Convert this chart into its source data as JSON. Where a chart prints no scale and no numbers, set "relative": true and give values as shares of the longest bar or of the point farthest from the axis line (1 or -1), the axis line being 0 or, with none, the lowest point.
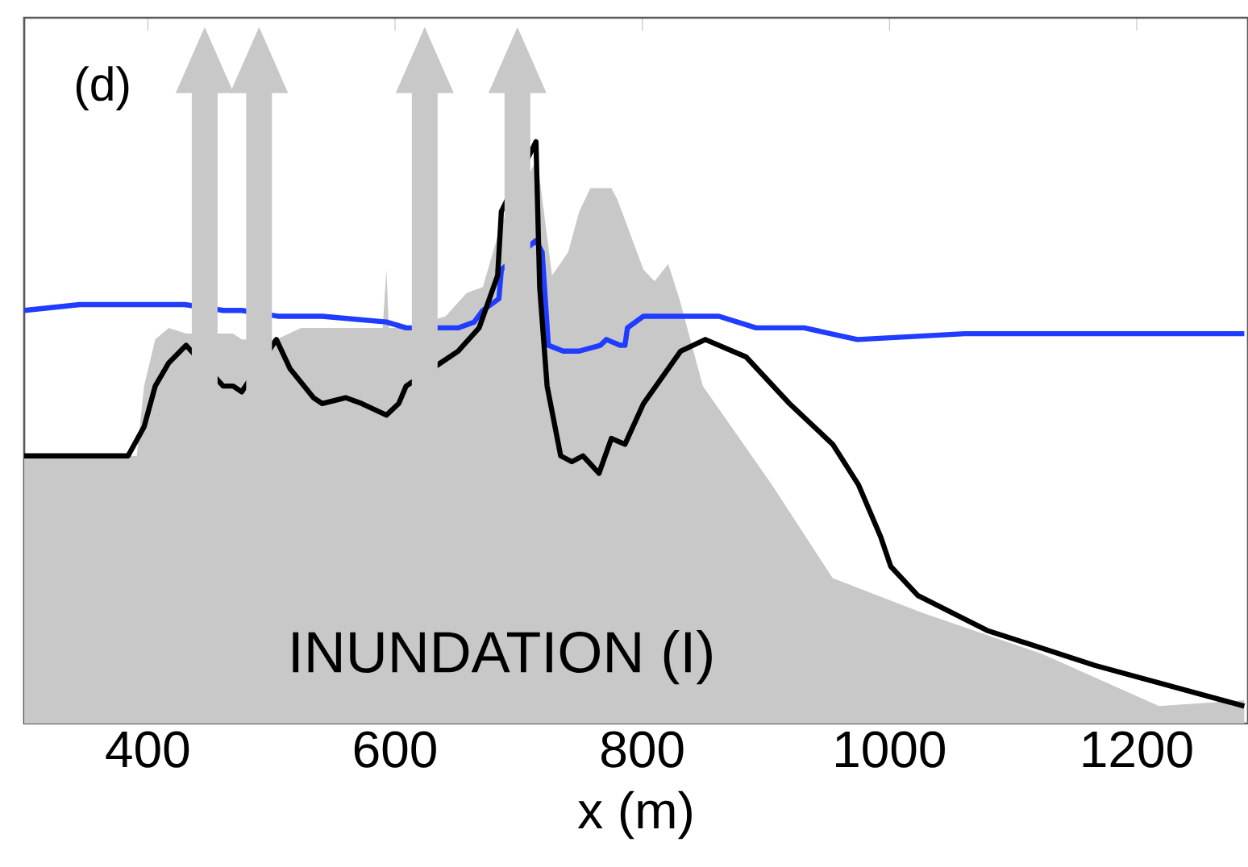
{
  "chart_data": {
    "type": "line",
    "relative": true,
    "xlabel": "x (m)",
    "annotations": [
      "(d)",
      "INUNDATION (I)"
    ],
    "xlim": [
      300,
      1290
    ],
    "xticks": [
      400,
      600,
      800,
      1000,
      1200
    ],
    "series": [
      {
        "type": "area",
        "color": "#c8c8c8",
        "x": [
          300,
          391,
          397,
          406,
          417,
          431,
          446,
          461,
          469,
          476,
          490,
          504,
          524,
          541,
          590,
          593,
          595,
          609,
          624,
          641,
          658,
          671,
          686,
          699,
          715,
          727,
          740,
          749,
          758,
          775,
          780,
          801,
          810,
          821,
          830,
          849,
          905,
          954,
          1027,
          1123,
          1218,
          1287
        ],
        "values": [
          0.46,
          0.46,
          0.58,
          0.66,
          0.68,
          0.67,
          null,
          0.67,
          0.67,
          0.66,
          null,
          0.66,
          0.68,
          0.68,
          0.68,
          0.78,
          0.68,
          0.68,
          null,
          0.7,
          0.74,
          0.75,
          0.86,
          null,
          0.97,
          0.77,
          0.81,
          0.88,
          0.92,
          0.92,
          0.9,
          0.78,
          0.76,
          0.79,
          0.73,
          0.58,
          0.41,
          0.25,
          0.19,
          0.12,
          0.03,
          0.04
        ]
      },
      {
        "color": "#1f3cff",
        "x": [
          300,
          345,
          410,
          430,
          446,
          461,
          476,
          490,
          505,
          541,
          593,
          609,
          624,
          640,
          651,
          664,
          671,
          684,
          686,
          699,
          714,
          719,
          724,
          736,
          749,
          766,
          771,
          782,
          786,
          788,
          801,
          827,
          862,
          892,
          931,
          974,
          1061,
          1192,
          1287
        ],
        "values": [
          0.71,
          0.72,
          0.72,
          0.72,
          null,
          0.71,
          0.71,
          null,
          0.7,
          0.7,
          0.69,
          0.68,
          null,
          0.68,
          0.68,
          0.69,
          0.71,
          0.73,
          0.78,
          null,
          0.83,
          0.81,
          0.65,
          0.64,
          0.64,
          0.65,
          0.66,
          0.65,
          0.65,
          0.68,
          0.7,
          0.7,
          0.7,
          0.68,
          0.68,
          0.66,
          0.67,
          0.67,
          0.67
        ]
      },
      {
        "color": "#000000",
        "x": [
          300,
          384,
          397,
          406,
          417,
          431,
          446,
          461,
          469,
          476,
          490,
          504,
          515,
          534,
          541,
          560,
          573,
          593,
          603,
          609,
          624,
          637,
          651,
          668,
          683,
          686,
          699,
          714,
          717,
          723,
          734,
          743,
          752,
          765,
          775,
          786,
          801,
          831,
          851,
          884,
          919,
          954,
          975,
          993,
          1001,
          1023,
          1079,
          1166,
          1287
        ],
        "values": [
          0.46,
          0.46,
          0.51,
          0.58,
          0.62,
          0.65,
          null,
          0.58,
          0.58,
          0.57,
          null,
          0.66,
          0.61,
          0.56,
          0.55,
          0.56,
          0.55,
          0.53,
          0.55,
          0.58,
          null,
          0.62,
          0.64,
          0.68,
          0.77,
          0.88,
          null,
          1,
          0.75,
          0.58,
          0.46,
          0.45,
          0.46,
          0.43,
          0.49,
          0.48,
          0.55,
          0.64,
          0.66,
          0.63,
          0.55,
          0.48,
          0.41,
          0.32,
          0.27,
          0.22,
          0.16,
          0.1,
          0.03
        ]
      }
    ]
  }
}
